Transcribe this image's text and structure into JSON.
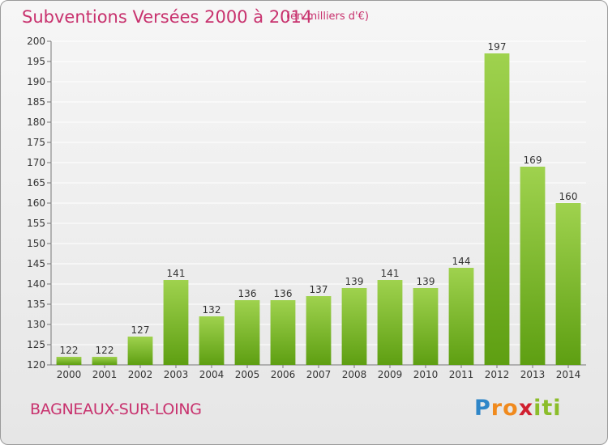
{
  "title": "Subventions Versées 2000 à 2014",
  "subtitle": "(en milliers d'€)",
  "commune": "BAGNEAUX-SUR-LOING",
  "logo": {
    "letters": [
      "P",
      "r",
      "o",
      "x",
      "i",
      "t",
      "i"
    ],
    "colors": [
      "#2f86c8",
      "#f08a1e",
      "#f08a1e",
      "#d02030",
      "#8bbd2a",
      "#8bbd2a",
      "#8bbd2a"
    ]
  },
  "colors": {
    "title": "#c8326e",
    "bar_light": "#9fd24e",
    "bar_dark": "#5e9f12",
    "grid": "#ffffff",
    "axis": "#777777"
  },
  "chart_data": {
    "type": "bar",
    "categories": [
      "2000",
      "2001",
      "2002",
      "2003",
      "2004",
      "2005",
      "2006",
      "2007",
      "2008",
      "2009",
      "2010",
      "2011",
      "2012",
      "2013",
      "2014"
    ],
    "values": [
      122,
      122,
      127,
      141,
      132,
      136,
      136,
      137,
      139,
      141,
      139,
      144,
      197,
      169,
      160
    ],
    "title": "Subventions Versées 2000 à 2014",
    "ylim": [
      120,
      200
    ],
    "yticks": [
      120,
      125,
      130,
      135,
      140,
      145,
      150,
      155,
      160,
      165,
      170,
      175,
      180,
      185,
      190,
      195,
      200
    ],
    "grid": true,
    "data_labels": true
  }
}
